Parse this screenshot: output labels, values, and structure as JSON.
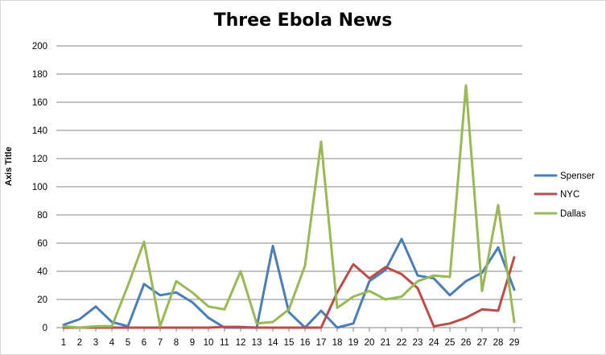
{
  "chart_data": {
    "type": "line",
    "title": "Three Ebola News",
    "ylabel": "Axis Title",
    "xlabel": "",
    "ylim": [
      0,
      200
    ],
    "yticks": [
      0,
      20,
      40,
      60,
      80,
      100,
      120,
      140,
      160,
      180,
      200
    ],
    "x": [
      1,
      2,
      3,
      4,
      5,
      6,
      7,
      8,
      9,
      10,
      11,
      12,
      13,
      14,
      15,
      16,
      17,
      18,
      19,
      20,
      21,
      22,
      23,
      24,
      25,
      26,
      27,
      28,
      29
    ],
    "grid": true,
    "legend_position": "right",
    "series": [
      {
        "name": "Spenser",
        "color": "#4a7ebb",
        "values": [
          2,
          6,
          15,
          4,
          1,
          31,
          23,
          25,
          18,
          7,
          0,
          0,
          0,
          58,
          11,
          0,
          12,
          0,
          3,
          33,
          41,
          63,
          37,
          35,
          23,
          33,
          39,
          57,
          27
        ]
      },
      {
        "name": "NYC",
        "color": "#be4b48",
        "values": [
          0,
          0,
          0,
          0,
          0,
          0,
          0,
          0,
          0,
          0,
          0.5,
          0.5,
          0,
          0,
          0,
          0,
          0,
          25,
          45,
          35,
          43,
          38,
          28,
          1,
          3,
          7,
          13,
          12,
          50
        ]
      },
      {
        "name": "Dallas",
        "color": "#98b954",
        "values": [
          1,
          0,
          1,
          1,
          30,
          61,
          1,
          33,
          25,
          15,
          13,
          40,
          3,
          4,
          13,
          44,
          132,
          14,
          22,
          26,
          20,
          22,
          33,
          37,
          36,
          172,
          26,
          87,
          4
        ]
      }
    ]
  }
}
